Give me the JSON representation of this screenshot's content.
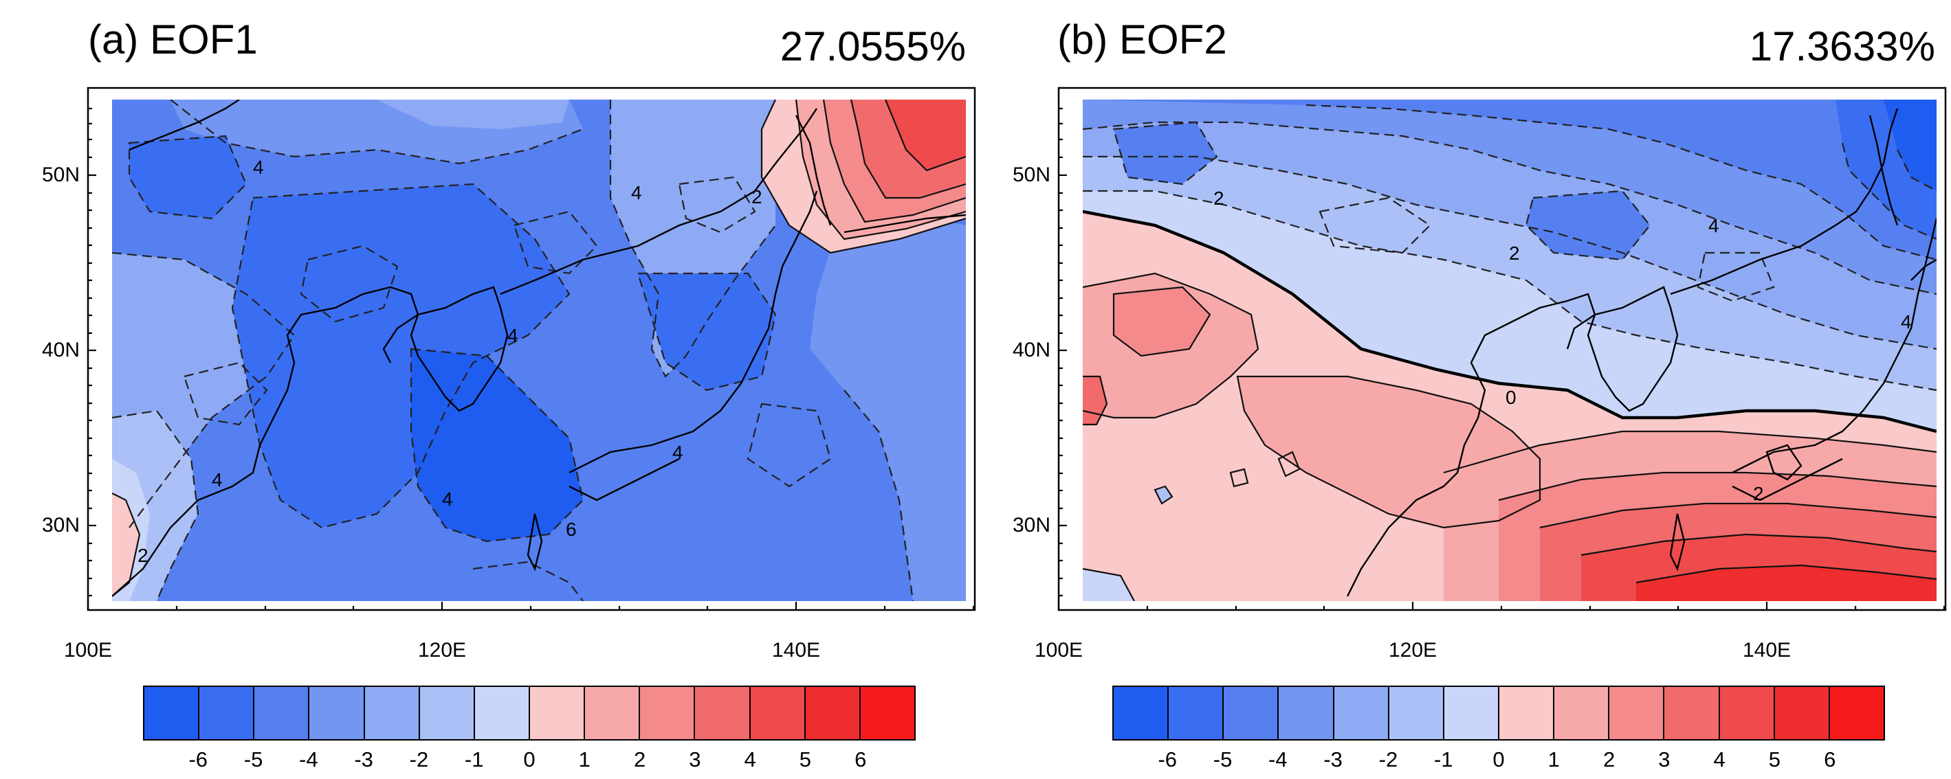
{
  "panels": [
    {
      "title": "(a) EOF1",
      "variance": "27.0555%",
      "y_ticks": [
        "50N",
        "40N",
        "30N"
      ],
      "x_ticks": [
        "100E",
        "120E",
        "140E"
      ]
    },
    {
      "title": "(b) EOF2",
      "variance": "17.3633%",
      "y_ticks": [
        "50N",
        "40N",
        "30N"
      ],
      "x_ticks": [
        "100E",
        "120E",
        "140E"
      ]
    }
  ],
  "colorbar": {
    "labels": [
      "-6",
      "-5",
      "-4",
      "-3",
      "-2",
      "-1",
      "0",
      "1",
      "2",
      "3",
      "4",
      "5",
      "6"
    ],
    "colors": [
      "#1f5cf0",
      "#3a6ef2",
      "#5680f0",
      "#7396f2",
      "#8eaaf4",
      "#abc0f7",
      "#c9d6fa",
      "#fac9ca",
      "#f7a9aa",
      "#f48a8b",
      "#f16b6c",
      "#ef4b4c",
      "#ed2d2e",
      "#f51a1a"
    ]
  },
  "contour_labels": {
    "eof1": [
      "4",
      "4",
      "2",
      "4",
      "4",
      "4",
      "4",
      "6",
      "2"
    ],
    "eof2": [
      "2",
      "2",
      "4",
      "4",
      "0",
      "2"
    ]
  }
}
